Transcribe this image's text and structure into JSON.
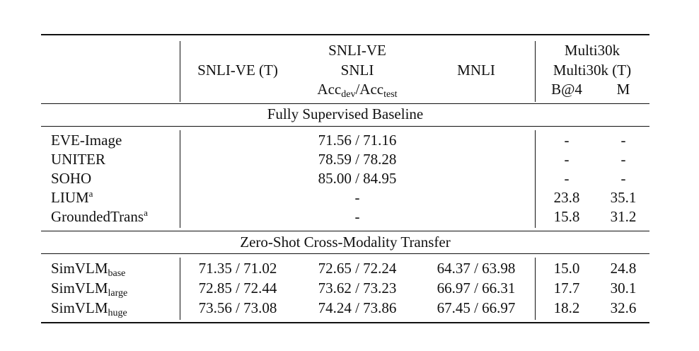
{
  "header": {
    "col_snlive_t": "SNLI-VE (T)",
    "group_top": "SNLI-VE",
    "col_snli": "SNLI",
    "col_mnli": "MNLI",
    "metric_acc": "Acc",
    "metric_dev_sub": "dev",
    "metric_sep": "/Acc",
    "metric_test_sub": "test",
    "multi_top": "Multi30k",
    "multi_t": "Multi30k (T)",
    "col_b4": "B@4",
    "col_m": "M"
  },
  "section1": {
    "title": "Fully Supervised Baseline",
    "rows": [
      {
        "model": "EVE-Image",
        "sup": "",
        "acc": "71.56 / 71.16",
        "b4": "-",
        "m": "-"
      },
      {
        "model": "UNITER",
        "sup": "",
        "acc": "78.59 / 78.28",
        "b4": "-",
        "m": "-"
      },
      {
        "model": "SOHO",
        "sup": "",
        "acc": "85.00 / 84.95",
        "b4": "-",
        "m": "-"
      },
      {
        "model": "LIUM",
        "sup": "a",
        "acc": "-",
        "b4": "23.8",
        "m": "35.1"
      },
      {
        "model": "GroundedTrans",
        "sup": "a",
        "acc": "-",
        "b4": "15.8",
        "m": "31.2"
      }
    ]
  },
  "section2": {
    "title": "Zero-Shot Cross-Modality Transfer",
    "rows": [
      {
        "model": "SimVLM",
        "sub": "base",
        "snlive_t": "71.35 / 71.02",
        "snli": "72.65 / 72.24",
        "mnli": "64.37 / 63.98",
        "b4": "15.0",
        "m": "24.8"
      },
      {
        "model": "SimVLM",
        "sub": "large",
        "snlive_t": "72.85 / 72.44",
        "snli": "73.62 / 73.23",
        "mnli": "66.97 / 66.31",
        "b4": "17.7",
        "m": "30.1"
      },
      {
        "model": "SimVLM",
        "sub": "huge",
        "snlive_t": "73.56 / 73.08",
        "snli": "74.24 / 73.86",
        "mnli": "67.45 / 66.97",
        "b4": "18.2",
        "m": "32.6"
      }
    ]
  }
}
